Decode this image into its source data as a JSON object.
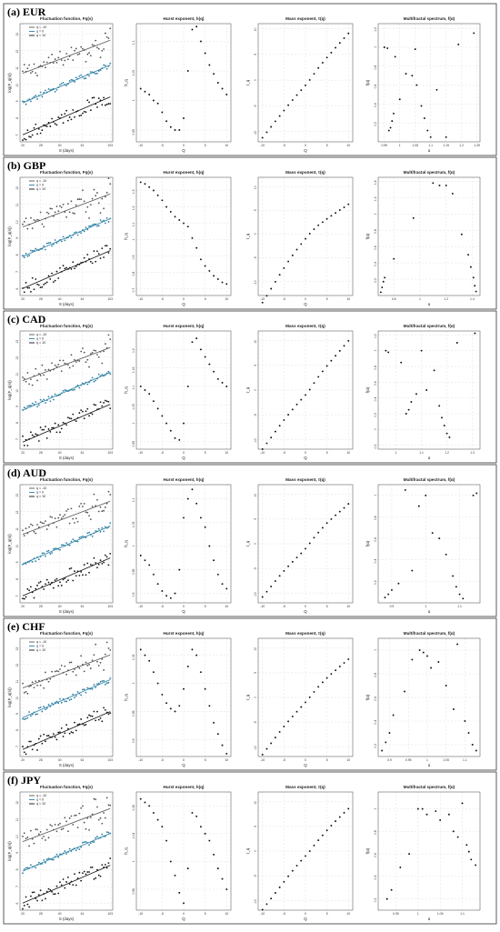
{
  "colors": {
    "series": [
      "#555555",
      "#2b7fa3",
      "#111111"
    ],
    "points_other": "#111111"
  },
  "titles": {
    "fluct": "Fluctuation function, Fq(s)",
    "hurst": "Hurst exponent, h(q)",
    "mass": "Mass exponent, τ(q)",
    "spectrum": "Multifractal spectrum, f(α)"
  },
  "axis_labels": {
    "fluct_x": "S (days)",
    "fluct_y": "log(F_q(s))",
    "hurst_x": "Q",
    "hurst_y": "h_q",
    "mass_x": "Q",
    "mass_y": "τ_q",
    "spec_x": "α",
    "spec_y": "f(α)"
  },
  "legend": [
    "q = -10",
    "q = 0",
    "q = 10"
  ],
  "fluct_x_ticks": [
    20,
    28,
    40,
    61,
    103
  ],
  "hurst_x_ticks": [
    -10,
    -5,
    0,
    5,
    10
  ],
  "mass_x_ticks": [
    -10,
    -5,
    0,
    5,
    10
  ],
  "chart_data": [
    {
      "label": "(a) EUR",
      "type": "scatter",
      "fluct_y_ticks": [
        7,
        8,
        9,
        10,
        11,
        12,
        13
      ],
      "fluct_ylim": [
        6.6,
        13.6
      ],
      "hurst_y_ticks": [
        0.95,
        1.0,
        1.05,
        1.1
      ],
      "hurst_ylim": [
        0.93,
        1.13
      ],
      "hurst_values": [
        1.02,
        1.015,
        1.01,
        1.0,
        0.995,
        0.98,
        0.965,
        0.955,
        0.95,
        0.95,
        0.97,
        1.05,
        1.12,
        1.125,
        1.1,
        1.08,
        1.06,
        1.045,
        1.03,
        1.02,
        1.01
      ],
      "mass_y_ticks": [
        -10,
        -5,
        0,
        5,
        10
      ],
      "mass_ylim": [
        -12,
        11
      ],
      "spec_y_ticks": [
        0.2,
        0.4,
        0.6,
        0.8,
        1.0,
        1.2
      ],
      "spec_ylim": [
        0.0,
        1.25
      ],
      "spec_x_ticks": [
        0.95,
        1.0,
        1.05,
        1.1,
        1.15,
        1.2,
        1.25
      ],
      "spec_xlim": [
        0.93,
        1.26
      ],
      "spectrum_points": [
        [
          0.95,
          1.0
        ],
        [
          0.96,
          0.99
        ],
        [
          0.965,
          0.12
        ],
        [
          0.97,
          0.15
        ],
        [
          0.975,
          0.22
        ],
        [
          0.98,
          0.3
        ],
        [
          0.985,
          0.9
        ],
        [
          1.0,
          0.45
        ],
        [
          1.02,
          0.72
        ],
        [
          1.04,
          0.7
        ],
        [
          1.05,
          0.98
        ],
        [
          1.055,
          0.6
        ],
        [
          1.07,
          0.38
        ],
        [
          1.08,
          0.25
        ],
        [
          1.09,
          0.12
        ],
        [
          1.1,
          0.05
        ],
        [
          1.12,
          0.55
        ],
        [
          1.15,
          0.05
        ],
        [
          1.19,
          1.03
        ],
        [
          1.24,
          1.15
        ]
      ]
    },
    {
      "label": "(b) GBP",
      "type": "scatter",
      "fluct_y_ticks": [
        6,
        7,
        8,
        9,
        10,
        11,
        12
      ],
      "fluct_ylim": [
        5.6,
        12.6
      ],
      "hurst_y_ticks": [
        0.7,
        0.8,
        0.9,
        1.0,
        1.1,
        1.2,
        1.3
      ],
      "hurst_ylim": [
        0.66,
        1.38
      ],
      "hurst_values": [
        1.35,
        1.34,
        1.32,
        1.3,
        1.27,
        1.24,
        1.2,
        1.17,
        1.14,
        1.12,
        1.1,
        1.08,
        1.01,
        0.95,
        0.88,
        0.84,
        0.81,
        0.78,
        0.76,
        0.74,
        0.73
      ],
      "mass_y_ticks": [
        -10,
        -5,
        0,
        5,
        10
      ],
      "mass_ylim": [
        -13,
        12
      ],
      "spec_y_ticks": [
        0.2,
        0.4,
        0.6,
        0.8,
        1.0,
        1.2,
        1.4
      ],
      "spec_ylim": [
        0.0,
        1.45
      ],
      "spec_x_ticks": [
        0.8,
        1.0,
        1.2,
        1.4
      ],
      "spec_xlim": [
        0.68,
        1.46
      ],
      "spectrum_points": [
        [
          0.7,
          0.04
        ],
        [
          0.71,
          0.1
        ],
        [
          0.72,
          0.17
        ],
        [
          0.73,
          0.22
        ],
        [
          0.8,
          0.45
        ],
        [
          0.95,
          0.95
        ],
        [
          1.1,
          1.38
        ],
        [
          1.15,
          1.35
        ],
        [
          1.2,
          1.35
        ],
        [
          1.25,
          1.25
        ],
        [
          1.32,
          0.75
        ],
        [
          1.37,
          0.5
        ],
        [
          1.39,
          0.35
        ],
        [
          1.41,
          0.22
        ],
        [
          1.42,
          0.12
        ],
        [
          1.43,
          0.05
        ]
      ]
    },
    {
      "label": "(c) CAD",
      "type": "scatter",
      "fluct_y_ticks": [
        7,
        8,
        9,
        10,
        11,
        12,
        13
      ],
      "fluct_ylim": [
        6.4,
        13.6
      ],
      "hurst_y_ticks": [
        0.95,
        1.0,
        1.05,
        1.1,
        1.15,
        1.2
      ],
      "hurst_ylim": [
        0.93,
        1.25
      ],
      "hurst_values": [
        1.1,
        1.09,
        1.08,
        1.06,
        1.04,
        1.02,
        1.0,
        0.98,
        0.96,
        0.955,
        1.0,
        1.1,
        1.22,
        1.23,
        1.2,
        1.18,
        1.16,
        1.14,
        1.12,
        1.11,
        1.1
      ],
      "mass_y_ticks": [
        -10,
        -5,
        0,
        5,
        10
      ],
      "mass_ylim": [
        -12,
        12
      ],
      "spec_y_ticks": [
        -0.2,
        0.0,
        0.2,
        0.4,
        0.6,
        0.8,
        1.0,
        1.2
      ],
      "spec_ylim": [
        -0.25,
        1.25
      ],
      "spec_x_ticks": [
        1.0,
        1.1,
        1.2,
        1.3
      ],
      "spec_xlim": [
        0.93,
        1.33
      ],
      "spectrum_points": [
        [
          0.96,
          1.0
        ],
        [
          0.97,
          0.98
        ],
        [
          1.02,
          0.85
        ],
        [
          1.04,
          0.2
        ],
        [
          1.05,
          0.25
        ],
        [
          1.06,
          0.35
        ],
        [
          1.08,
          0.45
        ],
        [
          1.1,
          1.0
        ],
        [
          1.12,
          0.5
        ],
        [
          1.15,
          0.75
        ],
        [
          1.17,
          0.3
        ],
        [
          1.18,
          0.15
        ],
        [
          1.19,
          0.05
        ],
        [
          1.2,
          -0.05
        ],
        [
          1.21,
          -0.1
        ],
        [
          1.24,
          1.1
        ],
        [
          1.31,
          1.22
        ]
      ]
    },
    {
      "label": "(d) AUD",
      "type": "scatter",
      "fluct_y_ticks": [
        7,
        8,
        9,
        10,
        11,
        12,
        13
      ],
      "fluct_ylim": [
        6.6,
        13.6
      ],
      "hurst_y_ticks": [
        0.9,
        0.95,
        1.0,
        1.05,
        1.1
      ],
      "hurst_ylim": [
        0.88,
        1.13
      ],
      "hurst_values": [
        0.98,
        0.97,
        0.96,
        0.94,
        0.92,
        0.905,
        0.895,
        0.89,
        0.9,
        0.95,
        1.06,
        1.1,
        1.12,
        1.09,
        1.06,
        1.04,
        1.0,
        0.97,
        0.94,
        0.92,
        0.91
      ],
      "mass_y_ticks": [
        -10,
        -5,
        0,
        5,
        10
      ],
      "mass_ylim": [
        -12,
        12
      ],
      "spec_y_ticks": [
        0.2,
        0.4,
        0.6,
        0.8,
        1.0
      ],
      "spec_ylim": [
        0.0,
        1.1
      ],
      "spec_x_ticks": [
        0.9,
        1.0,
        1.1
      ],
      "spec_xlim": [
        0.86,
        1.16
      ],
      "spectrum_points": [
        [
          0.88,
          0.05
        ],
        [
          0.89,
          0.08
        ],
        [
          0.9,
          0.12
        ],
        [
          0.92,
          0.18
        ],
        [
          0.94,
          1.05
        ],
        [
          0.96,
          0.3
        ],
        [
          0.98,
          0.9
        ],
        [
          1.0,
          1.0
        ],
        [
          1.02,
          0.65
        ],
        [
          1.04,
          0.6
        ],
        [
          1.06,
          0.45
        ],
        [
          1.08,
          0.25
        ],
        [
          1.09,
          0.15
        ],
        [
          1.1,
          0.08
        ],
        [
          1.11,
          0.04
        ],
        [
          1.14,
          1.0
        ],
        [
          1.15,
          1.02
        ]
      ]
    },
    {
      "label": "(e) CHF",
      "type": "scatter",
      "fluct_y_ticks": [
        7,
        8,
        9,
        10,
        11,
        12,
        13
      ],
      "fluct_ylim": [
        6.4,
        13.6
      ],
      "hurst_y_ticks": [
        0.9,
        0.95,
        1.0,
        1.05
      ],
      "hurst_ylim": [
        0.87,
        1.08
      ],
      "hurst_values": [
        1.06,
        1.05,
        1.04,
        1.02,
        1.0,
        0.98,
        0.965,
        0.955,
        0.95,
        0.96,
        0.99,
        1.03,
        1.06,
        1.05,
        1.02,
        0.99,
        0.96,
        0.93,
        0.91,
        0.89,
        0.875
      ],
      "mass_y_ticks": [
        -10,
        -5,
        0,
        5,
        10
      ],
      "mass_ylim": [
        -12,
        12
      ],
      "spec_y_ticks": [
        0.2,
        0.4,
        0.6,
        0.8,
        1.0
      ],
      "spec_ylim": [
        0.1,
        1.1
      ],
      "spec_x_ticks": [
        0.9,
        0.95,
        1.0,
        1.05,
        1.1
      ],
      "spec_xlim": [
        0.87,
        1.14
      ],
      "spectrum_points": [
        [
          0.88,
          0.15
        ],
        [
          0.89,
          0.22
        ],
        [
          0.9,
          0.3
        ],
        [
          0.91,
          0.45
        ],
        [
          0.94,
          0.65
        ],
        [
          0.96,
          0.92
        ],
        [
          0.98,
          1.0
        ],
        [
          0.99,
          0.98
        ],
        [
          1.0,
          0.95
        ],
        [
          1.01,
          0.85
        ],
        [
          1.03,
          0.9
        ],
        [
          1.05,
          0.7
        ],
        [
          1.07,
          0.5
        ],
        [
          1.08,
          1.05
        ],
        [
          1.1,
          0.4
        ],
        [
          1.11,
          0.3
        ],
        [
          1.12,
          0.2
        ],
        [
          1.13,
          0.15
        ]
      ]
    },
    {
      "label": "(f) JPY",
      "type": "scatter",
      "fluct_y_ticks": [
        6,
        7,
        8,
        9,
        10,
        11,
        12
      ],
      "fluct_ylim": [
        5.6,
        12.6
      ],
      "hurst_y_ticks": [
        0.96,
        1.0,
        1.04,
        1.08
      ],
      "hurst_ylim": [
        0.93,
        1.1
      ],
      "hurst_values": [
        1.09,
        1.085,
        1.08,
        1.07,
        1.06,
        1.05,
        1.03,
        1.0,
        0.98,
        0.955,
        0.94,
        0.99,
        1.07,
        1.065,
        1.05,
        1.04,
        1.03,
        1.01,
        0.99,
        0.975,
        0.96
      ],
      "mass_y_ticks": [
        -10,
        -5,
        0,
        5,
        10
      ],
      "mass_ylim": [
        -12,
        12
      ],
      "spec_y_ticks": [
        0.2,
        0.4,
        0.6,
        0.8,
        1.0
      ],
      "spec_ylim": [
        0.1,
        1.15
      ],
      "spec_x_ticks": [
        0.95,
        1.0,
        1.05,
        1.1
      ],
      "spec_xlim": [
        0.91,
        1.14
      ],
      "spectrum_points": [
        [
          0.93,
          0.2
        ],
        [
          0.94,
          0.28
        ],
        [
          0.96,
          0.48
        ],
        [
          0.98,
          0.6
        ],
        [
          1.0,
          1.0
        ],
        [
          1.01,
          1.0
        ],
        [
          1.02,
          0.95
        ],
        [
          1.04,
          0.98
        ],
        [
          1.05,
          0.9
        ],
        [
          1.07,
          0.95
        ],
        [
          1.08,
          0.8
        ],
        [
          1.09,
          0.75
        ],
        [
          1.1,
          1.05
        ],
        [
          1.11,
          0.68
        ],
        [
          1.115,
          0.62
        ],
        [
          1.12,
          0.55
        ],
        [
          1.13,
          0.5
        ]
      ]
    }
  ]
}
